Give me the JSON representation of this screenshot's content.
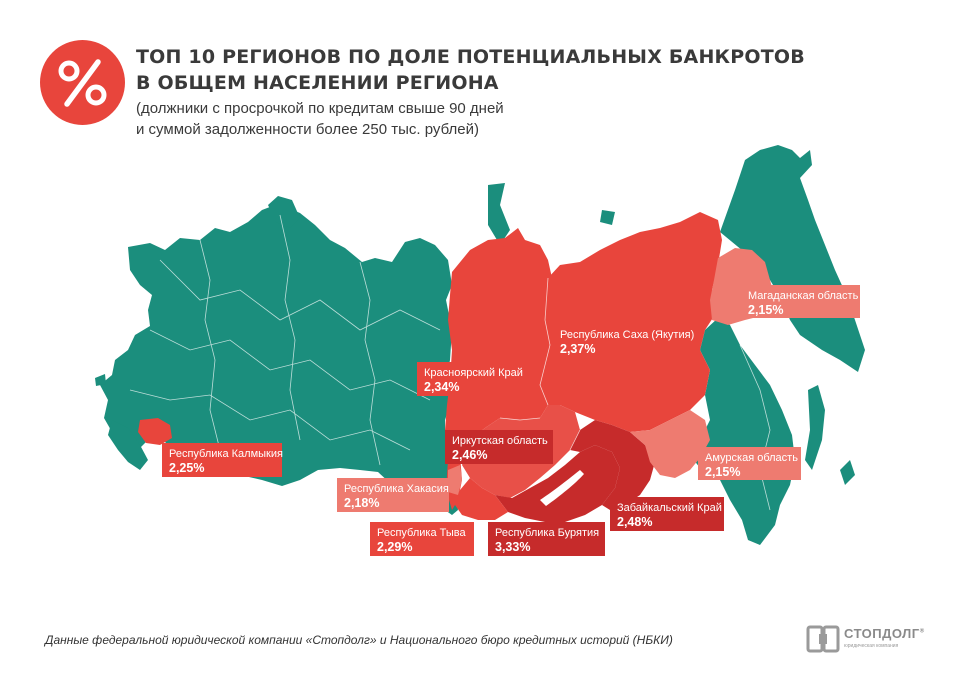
{
  "header": {
    "icon": "percent-icon",
    "title_line1": "ТОП 10 РЕГИОНОВ ПО ДОЛЕ ПОТЕНЦИАЛЬНЫХ БАНКРОТОВ",
    "title_line2": "В ОБЩЕМ НАСЕЛЕНИИ РЕГИОНА",
    "subtitle_line1": "(должники с просрочкой по кредитам свыше 90 дней",
    "subtitle_line2": "и суммой задолженности более 250 тыс. рублей)"
  },
  "colors": {
    "base_region": "#1b8e7d",
    "highlight_region": "#e8453c",
    "dark_highlight": "#c62b2b",
    "light_highlight": "#ee7b70"
  },
  "regions": [
    {
      "name": "Магаданская область",
      "value": "2,15%"
    },
    {
      "name": "Республика Саха (Якутия)",
      "value": "2,37%"
    },
    {
      "name": "Красноярский Край",
      "value": "2,34%"
    },
    {
      "name": "Иркутская область",
      "value": "2,46%"
    },
    {
      "name": "Амурская область",
      "value": "2,15%"
    },
    {
      "name": "Республика Калмыкия",
      "value": "2,25%"
    },
    {
      "name": "Республика Хакасия",
      "value": "2,18%"
    },
    {
      "name": "Забайкальский Край",
      "value": "2,48%"
    },
    {
      "name": "Республика Тыва",
      "value": "2,29%"
    },
    {
      "name": "Республика Бурятия",
      "value": "3,33%"
    }
  ],
  "footer": {
    "source": "Данные федеральной юридической компании «Стопдолг» и Национального бюро кредитных историй (НБКИ)"
  },
  "logo": {
    "name": "СТОПДОЛГ",
    "registered": "®",
    "tagline": "юридическая компания",
    "icon": "stopdolg-logo-icon"
  }
}
